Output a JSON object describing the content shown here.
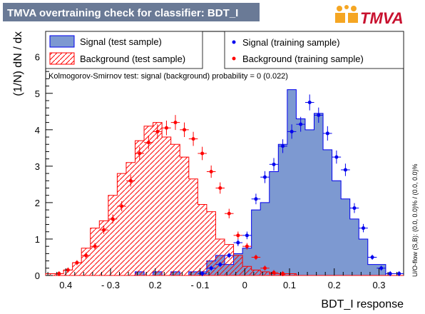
{
  "header": {
    "title": "TMVA overtraining check for classifier: BDT_I",
    "logo_text": "TMVA"
  },
  "colors": {
    "signal_fill": "#7d99d1",
    "signal_line": "#0000ee",
    "background_line": "#ff0000",
    "title_bg": "#6a7a96"
  },
  "ks_text": "Kolmogorov-Smirnov test: signal (background) probability =     0 (0.022)",
  "overflow_text": "U/O-flow (S,B): (0.0, 0.0)% / (0.0, 0.0)%",
  "chart_data": {
    "type": "histogram",
    "xlabel": "BDT_I response",
    "ylabel": "(1/N) dN / dx",
    "xlim": [
      -0.445,
      0.355
    ],
    "ylim": [
      0,
      6.7
    ],
    "x_ticks": [
      {
        "v": -0.4,
        "label": "0.4"
      },
      {
        "v": -0.3,
        "label": "- 0.3"
      },
      {
        "v": -0.2,
        "label": "0.2"
      },
      {
        "v": -0.1,
        "label": "- 0.1"
      },
      {
        "v": 0,
        "label": "0"
      },
      {
        "v": 0.1,
        "label": "0.1"
      },
      {
        "v": 0.2,
        "label": "0.2"
      },
      {
        "v": 0.3,
        "label": "0.3"
      }
    ],
    "y_ticks": [
      0,
      1,
      2,
      3,
      4,
      5,
      6
    ],
    "bins": {
      "start": -0.445,
      "width": 0.02,
      "count": 40
    },
    "series": [
      {
        "name": "Signal (test sample)",
        "style": "filled",
        "values": [
          0,
          0,
          0,
          0,
          0,
          0,
          0,
          0,
          0,
          0,
          0.1,
          0,
          0.1,
          0,
          0.1,
          0,
          0.1,
          0.1,
          0.4,
          0.55,
          0.3,
          0.6,
          0.75,
          1.8,
          2.0,
          2.85,
          3.6,
          5.1,
          4.3,
          4.0,
          4.45,
          3.45,
          2.6,
          2.1,
          1.55,
          1.0,
          0.3,
          0.3,
          0,
          0
        ]
      },
      {
        "name": "Background (test sample)",
        "style": "hatched",
        "values": [
          0.05,
          0.05,
          0.15,
          0.35,
          0.75,
          1.3,
          1.5,
          2.2,
          2.8,
          3.1,
          3.7,
          4.1,
          4.2,
          3.8,
          3.6,
          3.25,
          2.65,
          1.95,
          1.75,
          1.0,
          0.85,
          0.55,
          0.25,
          0.15,
          0.1,
          0.05,
          0.05,
          0.05,
          0,
          0,
          0,
          0,
          0,
          0,
          0,
          0,
          0,
          0,
          0,
          0
        ]
      },
      {
        "name": "Signal (training sample)",
        "style": "points",
        "values": [
          0,
          0,
          0,
          0,
          0,
          0,
          0,
          0,
          0,
          0,
          0,
          0,
          0,
          0,
          0,
          0,
          0.02,
          0.05,
          0.2,
          0.3,
          0.55,
          0.9,
          1.1,
          2.1,
          2.7,
          3.05,
          3.55,
          3.95,
          4.15,
          4.75,
          4.4,
          3.9,
          3.25,
          2.9,
          1.85,
          1.3,
          0.5,
          0.2,
          0.05,
          0.05
        ]
      },
      {
        "name": "Background (training sample)",
        "style": "points",
        "values": [
          0.02,
          0.05,
          0.15,
          0.35,
          0.55,
          0.8,
          1.25,
          1.55,
          1.9,
          2.6,
          3.35,
          3.65,
          3.95,
          4.05,
          4.2,
          4.0,
          3.75,
          3.35,
          2.85,
          2.4,
          1.7,
          1.1,
          0.8,
          0.5,
          0.2,
          0.08,
          0.05,
          0.03,
          0.02,
          0.02,
          0,
          0,
          0,
          0,
          0,
          0,
          0,
          0,
          0,
          0
        ]
      }
    ],
    "legend": {
      "position": "top",
      "entries": [
        {
          "label": "Signal (test sample)"
        },
        {
          "label": "Background (test sample)"
        },
        {
          "label": "Signal (training sample)"
        },
        {
          "label": "Background (training sample)"
        }
      ]
    }
  }
}
